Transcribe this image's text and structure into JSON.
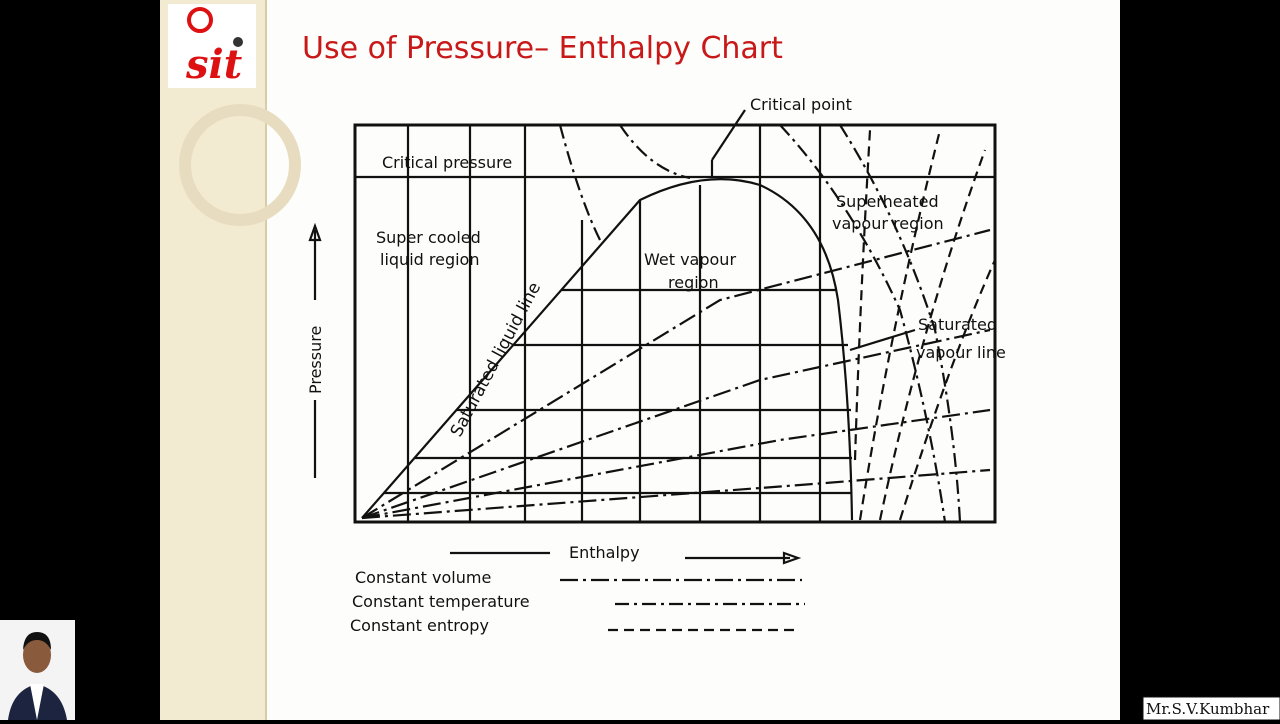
{
  "slide": {
    "title": "Use of Pressure– Enthalpy Chart",
    "logo_text": "sit"
  },
  "diagram": {
    "critical_point": "Critical point",
    "critical_pressure": "Critical pressure",
    "subcooled_region": [
      "Super cooled",
      "liquid region"
    ],
    "wet_region": [
      "Wet vapour",
      "region"
    ],
    "superheated_region": [
      "Superheated",
      "vapour region"
    ],
    "saturated_liquid_line": "Saturated liquid line",
    "saturated_vapour_line": [
      "Saturated",
      "vapour line"
    ],
    "y_axis": "Pressure",
    "x_axis": "Enthalpy"
  },
  "legend": [
    "Constant volume",
    "Constant temperature",
    "Constant entropy"
  ],
  "presenter": "Mr.S.V.Kumbhar"
}
